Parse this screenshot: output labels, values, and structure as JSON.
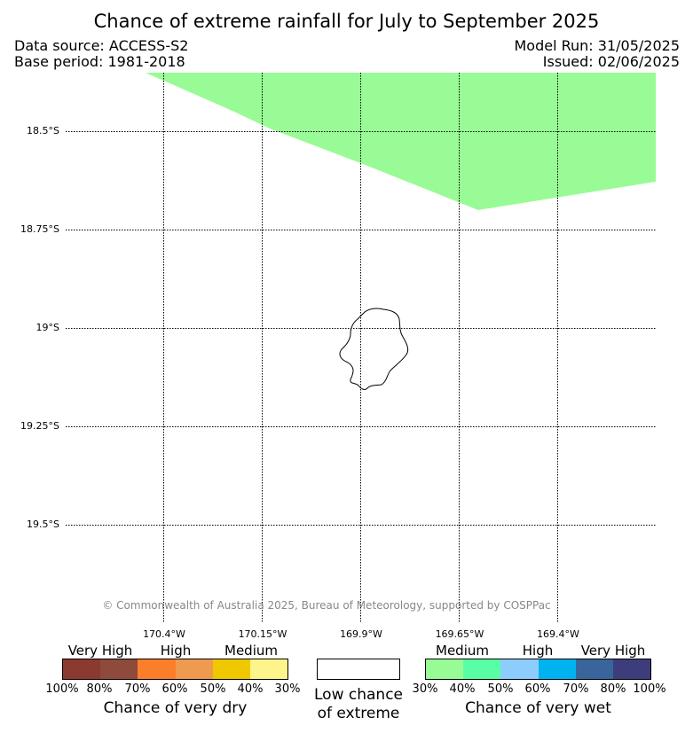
{
  "title": "Chance of extreme rainfall for July to September 2025",
  "header": {
    "data_source": "Data source: ACCESS-S2",
    "base_period": "Base period: 1981-2018",
    "model_run": "Model Run: 31/05/2025",
    "issued": "Issued: 02/06/2025"
  },
  "map": {
    "lat_labels": [
      "18.5°S",
      "18.75°S",
      "19°S",
      "19.25°S",
      "19.5°S"
    ],
    "lon_labels": [
      "170.4°W",
      "170.15°W",
      "169.9°W",
      "169.65°W",
      "169.4°W"
    ],
    "region_color": "#99fb95",
    "region_category": "Chance of very wet — Medium (30%–40%)",
    "island": "Niue",
    "copyright": "© Commonwealth of Australia 2025, Bureau of Meteorology, supported by COSPPac"
  },
  "legend": {
    "dry": {
      "categories": [
        "Very High",
        "High",
        "Medium"
      ],
      "colors": [
        "#8b3a30",
        "#8e4a3a",
        "#fb7f2b",
        "#ee9b4f",
        "#f0c800",
        "#fdf58c"
      ],
      "ticks": [
        "100%",
        "80%",
        "70%",
        "60%",
        "50%",
        "40%",
        "30%"
      ],
      "label": "Chance of very dry"
    },
    "low": {
      "color": "#ffffff",
      "label_line1": "Low chance",
      "label_line2": "of extreme"
    },
    "wet": {
      "categories": [
        "Medium",
        "High",
        "Very High"
      ],
      "colors": [
        "#99fb95",
        "#59ffa4",
        "#8ccdfe",
        "#00b3f0",
        "#3a649c",
        "#3d3d7b"
      ],
      "ticks": [
        "30%",
        "40%",
        "50%",
        "60%",
        "70%",
        "80%",
        "100%"
      ],
      "label": "Chance of very wet"
    }
  }
}
